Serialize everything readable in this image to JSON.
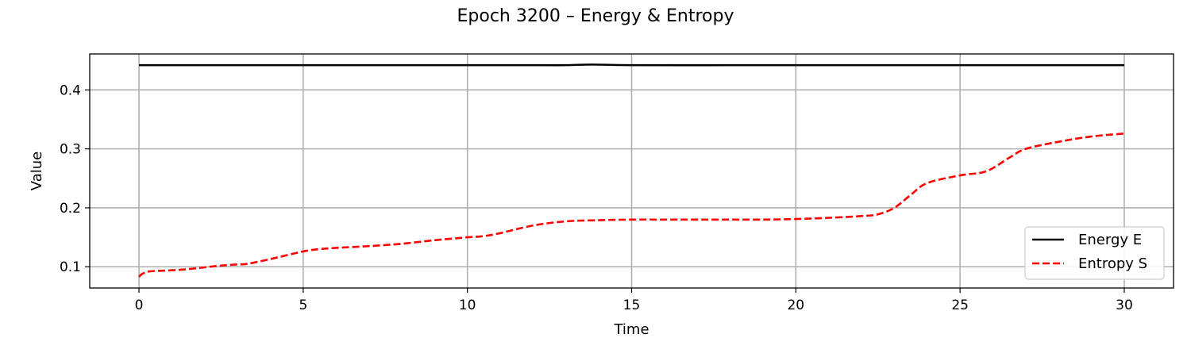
{
  "chart_data": {
    "type": "line",
    "title": "Epoch 3200 – Energy & Entropy",
    "xlabel": "Time",
    "ylabel": "Value",
    "xlim": [
      -1.5,
      31.5
    ],
    "ylim": [
      0.064,
      0.461
    ],
    "xticks": [
      0,
      5,
      10,
      15,
      20,
      25,
      30
    ],
    "yticks": [
      0.1,
      0.2,
      0.3,
      0.4
    ],
    "xtick_labels": [
      "0",
      "5",
      "10",
      "15",
      "20",
      "25",
      "30"
    ],
    "ytick_labels": [
      "0.1",
      "0.2",
      "0.3",
      "0.4"
    ],
    "grid": true,
    "legend_position": "lower-right",
    "series": [
      {
        "name": "Energy E",
        "color": "#000000",
        "style": "solid",
        "x": [
          0,
          2,
          4,
          6,
          8,
          10,
          12,
          13,
          13.8,
          15,
          18,
          20,
          22,
          25,
          27,
          30
        ],
        "y": [
          0.442,
          0.442,
          0.442,
          0.442,
          0.442,
          0.442,
          0.442,
          0.442,
          0.443,
          0.442,
          0.442,
          0.442,
          0.442,
          0.442,
          0.442,
          0.442
        ]
      },
      {
        "name": "Entropy S",
        "color": "#ff0000",
        "style": "dashed",
        "x": [
          0,
          0.1,
          0.3,
          0.6,
          1,
          1.5,
          2,
          2.5,
          3,
          3.3,
          4,
          5,
          5.5,
          6,
          7,
          8,
          9,
          10,
          10.5,
          11,
          12,
          13,
          14,
          15,
          16,
          17,
          18,
          19,
          20,
          21,
          22,
          22.5,
          23,
          23.5,
          24,
          25,
          25.8,
          26.5,
          27,
          28,
          29,
          30
        ],
        "y": [
          0.083,
          0.088,
          0.092,
          0.093,
          0.094,
          0.096,
          0.099,
          0.102,
          0.104,
          0.105,
          0.113,
          0.126,
          0.13,
          0.132,
          0.135,
          0.139,
          0.145,
          0.15,
          0.152,
          0.157,
          0.17,
          0.177,
          0.179,
          0.18,
          0.18,
          0.18,
          0.18,
          0.18,
          0.181,
          0.183,
          0.186,
          0.189,
          0.2,
          0.222,
          0.242,
          0.255,
          0.262,
          0.285,
          0.3,
          0.312,
          0.321,
          0.326
        ]
      }
    ]
  }
}
